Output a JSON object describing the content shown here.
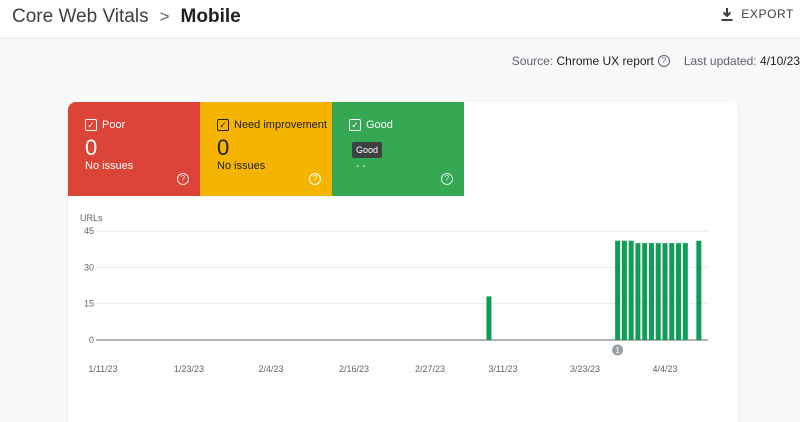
{
  "breadcrumb": {
    "root": "Core Web Vitals",
    "separator": ">",
    "current": "Mobile"
  },
  "export": {
    "label": "EXPORT",
    "icon": "download-icon"
  },
  "meta": {
    "source_label": "Source:",
    "source_value": "Chrome UX report",
    "updated_label": "Last updated:",
    "updated_value": "4/10/23",
    "help_glyph": "?"
  },
  "tiles": [
    {
      "label": "Poor",
      "count": "0",
      "sub": "No issues",
      "color": "#db4437"
    },
    {
      "label": "Need improvement",
      "count": "0",
      "sub": "No issues",
      "color": "#f4b400"
    },
    {
      "label": "Good",
      "count": "",
      "sub": "",
      "color": "#34a853",
      "tooltip": "Good",
      "hidden_text": "- -"
    }
  ],
  "checkmark": "✓",
  "chart_data": {
    "type": "bar",
    "ylabel": "URLs",
    "ylim": [
      0,
      45
    ],
    "yticks": [
      "45",
      "30",
      "15",
      "0"
    ],
    "xticks": [
      "1/11/23",
      "1/23/23",
      "2/4/23",
      "2/16/23",
      "2/27/23",
      "3/11/23",
      "3/23/23",
      "4/4/23"
    ],
    "grid": true,
    "color": "#0f9d58",
    "bars": [
      {
        "date": "3/9/23",
        "value": 18
      },
      {
        "date": "3/28/23",
        "value": 41
      },
      {
        "date": "3/29/23",
        "value": 41
      },
      {
        "date": "3/30/23",
        "value": 41
      },
      {
        "date": "3/31/23",
        "value": 40
      },
      {
        "date": "4/1/23",
        "value": 40
      },
      {
        "date": "4/2/23",
        "value": 40
      },
      {
        "date": "4/3/23",
        "value": 40
      },
      {
        "date": "4/4/23",
        "value": 40
      },
      {
        "date": "4/5/23",
        "value": 40
      },
      {
        "date": "4/6/23",
        "value": 40
      },
      {
        "date": "4/7/23",
        "value": 40
      },
      {
        "date": "4/9/23",
        "value": 41
      }
    ],
    "annotation": {
      "label": "1",
      "date": "3/28/23"
    }
  }
}
